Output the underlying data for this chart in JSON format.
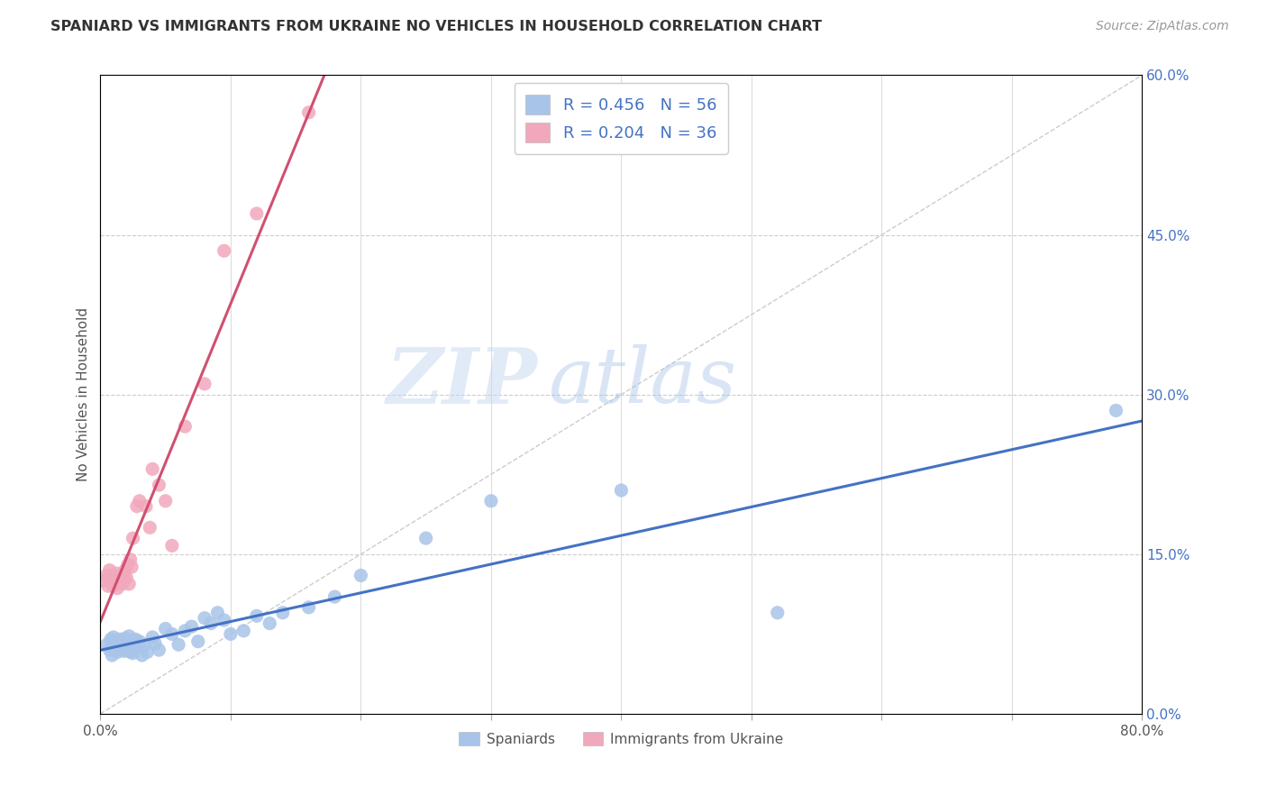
{
  "title": "SPANIARD VS IMMIGRANTS FROM UKRAINE NO VEHICLES IN HOUSEHOLD CORRELATION CHART",
  "source": "Source: ZipAtlas.com",
  "ylabel": "No Vehicles in Household",
  "legend_label1": "Spaniards",
  "legend_label2": "Immigrants from Ukraine",
  "R1": 0.456,
  "N1": 56,
  "R2": 0.204,
  "N2": 36,
  "color_blue": "#a8c4e8",
  "color_pink": "#f2a8bc",
  "color_blue_line": "#4472c4",
  "color_pink_line": "#d05070",
  "color_blue_text": "#4472c4",
  "xlim": [
    0.0,
    0.8
  ],
  "ylim": [
    0.0,
    0.6
  ],
  "watermark_zip": "ZIP",
  "watermark_atlas": "atlas",
  "blue_points_x": [
    0.005,
    0.007,
    0.008,
    0.009,
    0.01,
    0.01,
    0.011,
    0.012,
    0.013,
    0.014,
    0.015,
    0.016,
    0.017,
    0.018,
    0.019,
    0.02,
    0.02,
    0.021,
    0.022,
    0.023,
    0.024,
    0.025,
    0.025,
    0.026,
    0.027,
    0.028,
    0.03,
    0.032,
    0.034,
    0.036,
    0.04,
    0.042,
    0.045,
    0.05,
    0.055,
    0.06,
    0.065,
    0.07,
    0.075,
    0.08,
    0.085,
    0.09,
    0.095,
    0.1,
    0.11,
    0.12,
    0.13,
    0.14,
    0.16,
    0.18,
    0.2,
    0.25,
    0.3,
    0.4,
    0.52,
    0.78
  ],
  "blue_points_y": [
    0.065,
    0.06,
    0.07,
    0.055,
    0.065,
    0.072,
    0.062,
    0.068,
    0.058,
    0.064,
    0.07,
    0.063,
    0.066,
    0.059,
    0.071,
    0.067,
    0.06,
    0.065,
    0.073,
    0.058,
    0.063,
    0.069,
    0.057,
    0.064,
    0.07,
    0.062,
    0.068,
    0.055,
    0.065,
    0.058,
    0.072,
    0.066,
    0.06,
    0.08,
    0.075,
    0.065,
    0.078,
    0.082,
    0.068,
    0.09,
    0.085,
    0.095,
    0.088,
    0.075,
    0.078,
    0.092,
    0.085,
    0.095,
    0.1,
    0.11,
    0.13,
    0.165,
    0.2,
    0.21,
    0.095,
    0.285
  ],
  "pink_points_x": [
    0.003,
    0.005,
    0.006,
    0.007,
    0.008,
    0.009,
    0.01,
    0.01,
    0.011,
    0.012,
    0.013,
    0.014,
    0.015,
    0.016,
    0.017,
    0.018,
    0.019,
    0.02,
    0.021,
    0.022,
    0.023,
    0.024,
    0.025,
    0.028,
    0.03,
    0.035,
    0.038,
    0.04,
    0.045,
    0.05,
    0.055,
    0.065,
    0.08,
    0.095,
    0.12,
    0.16
  ],
  "pink_points_y": [
    0.125,
    0.13,
    0.12,
    0.135,
    0.125,
    0.13,
    0.12,
    0.128,
    0.125,
    0.132,
    0.118,
    0.127,
    0.124,
    0.13,
    0.122,
    0.128,
    0.135,
    0.128,
    0.14,
    0.122,
    0.145,
    0.138,
    0.165,
    0.195,
    0.2,
    0.195,
    0.175,
    0.23,
    0.215,
    0.2,
    0.158,
    0.27,
    0.31,
    0.435,
    0.47,
    0.565
  ]
}
